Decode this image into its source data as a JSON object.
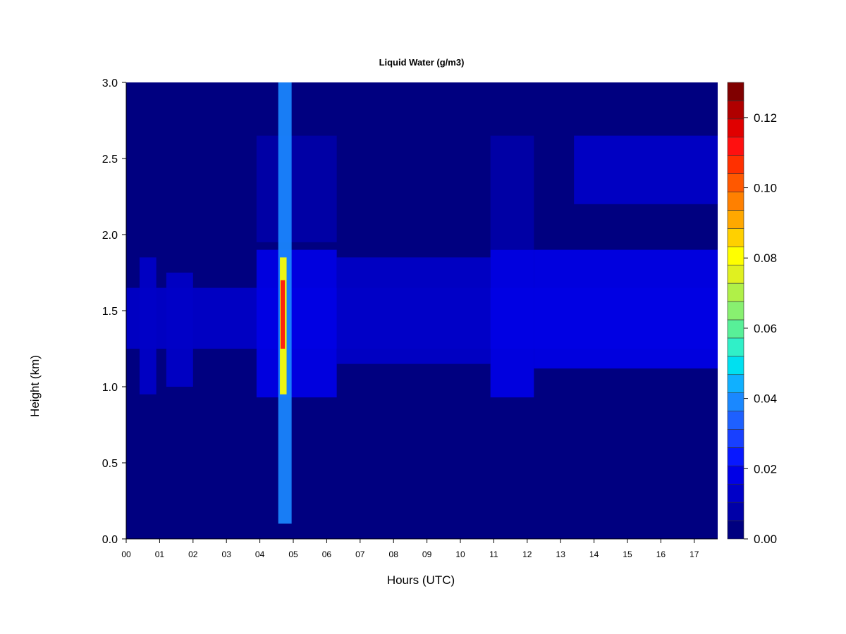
{
  "chart_data": {
    "type": "heatmap",
    "title": "Liquid Water (g/m3)",
    "xlabel": "Hours (UTC)",
    "ylabel": "Height (km)",
    "x_ticks": [
      "00",
      "01",
      "02",
      "03",
      "04",
      "05",
      "06",
      "07",
      "08",
      "09",
      "10",
      "11",
      "12",
      "13",
      "14",
      "15",
      "16",
      "17"
    ],
    "xlim": [
      0,
      17.7
    ],
    "y_ticks": [
      "0.0",
      "0.5",
      "1.0",
      "1.5",
      "2.0",
      "2.5",
      "3.0"
    ],
    "ylim": [
      0,
      3.0
    ],
    "colorbar": {
      "ticks": [
        "0.00",
        "0.02",
        "0.04",
        "0.06",
        "0.08",
        "0.10",
        "0.12"
      ],
      "range": [
        0,
        0.13
      ],
      "levels": [
        "#000080",
        "#0000a8",
        "#0000c8",
        "#0000e6",
        "#0818ff",
        "#1840ff",
        "#1e60ff",
        "#1a88ff",
        "#10b0ff",
        "#00e0f0",
        "#30f0c8",
        "#58f098",
        "#88f070",
        "#b0f048",
        "#e0f020",
        "#ffff00",
        "#ffd000",
        "#ffa800",
        "#ff8000",
        "#ff5800",
        "#ff3000",
        "#ff1010",
        "#e00000",
        "#b00000",
        "#800000"
      ]
    },
    "regions": [
      {
        "x0": 0.0,
        "x1": 17.7,
        "y0": 1.25,
        "y1": 1.65,
        "value": 0.012
      },
      {
        "x0": 0.4,
        "x1": 0.9,
        "y0": 0.95,
        "y1": 1.85,
        "value": 0.014
      },
      {
        "x0": 1.2,
        "x1": 2.0,
        "y0": 1.0,
        "y1": 1.75,
        "value": 0.013
      },
      {
        "x0": 3.9,
        "x1": 6.3,
        "y0": 0.93,
        "y1": 1.9,
        "value": 0.017
      },
      {
        "x0": 3.9,
        "x1": 6.3,
        "y0": 1.95,
        "y1": 2.65,
        "value": 0.01
      },
      {
        "x0": 4.55,
        "x1": 4.95,
        "y0": 0.1,
        "y1": 3.0,
        "value": 0.04
      },
      {
        "x0": 4.6,
        "x1": 4.8,
        "y0": 0.95,
        "y1": 1.85,
        "value": 0.08
      },
      {
        "x0": 4.62,
        "x1": 4.75,
        "y0": 1.25,
        "y1": 1.7,
        "value": 0.11
      },
      {
        "x0": 6.3,
        "x1": 10.9,
        "y0": 1.15,
        "y1": 1.85,
        "value": 0.012
      },
      {
        "x0": 10.9,
        "x1": 12.2,
        "y0": 0.93,
        "y1": 1.9,
        "value": 0.02
      },
      {
        "x0": 10.9,
        "x1": 12.2,
        "y0": 1.9,
        "y1": 2.65,
        "value": 0.01
      },
      {
        "x0": 12.2,
        "x1": 17.7,
        "y0": 1.12,
        "y1": 1.9,
        "value": 0.016
      },
      {
        "x0": 13.4,
        "x1": 17.7,
        "y0": 2.2,
        "y1": 2.65,
        "value": 0.013
      }
    ]
  }
}
